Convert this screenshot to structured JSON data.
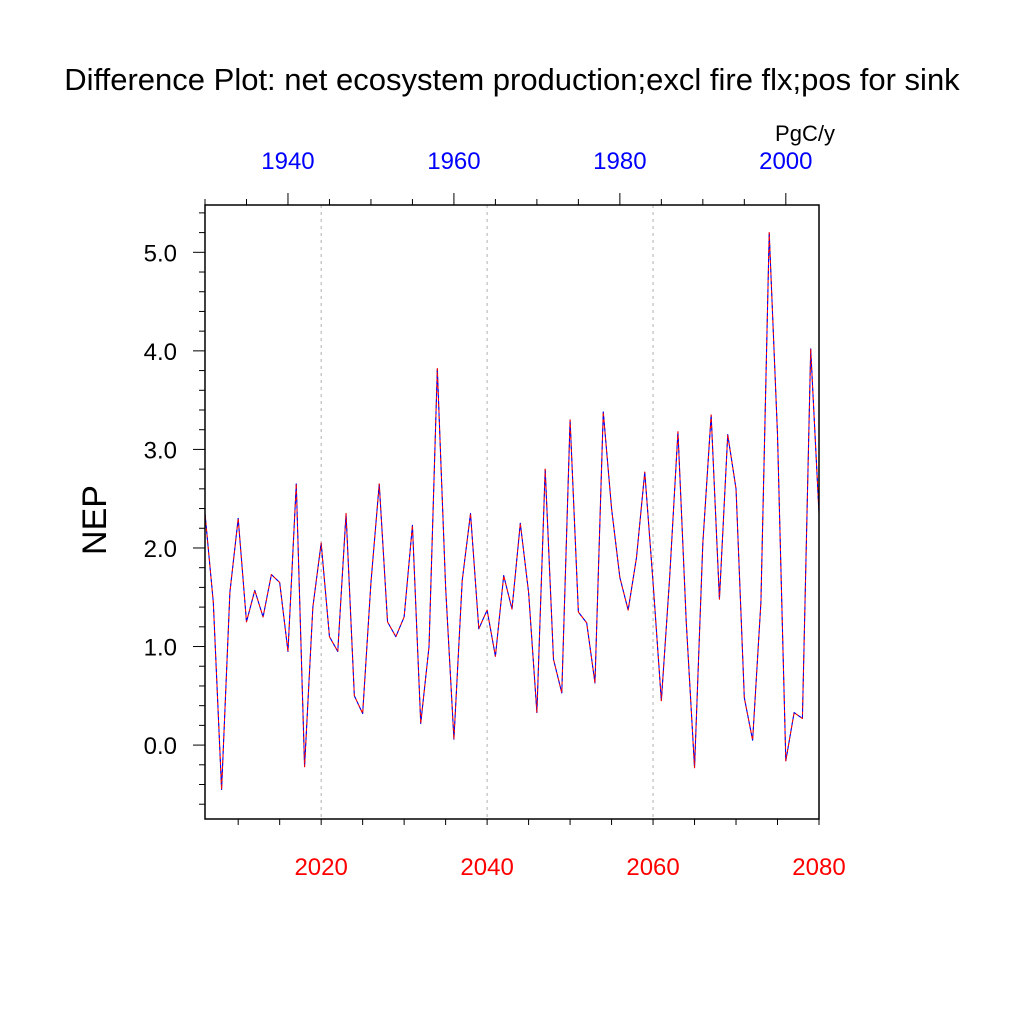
{
  "chart_data": {
    "type": "line",
    "title": "Difference Plot: net ecosystem production;excl fire flx;pos for sink",
    "units": "PgC/y",
    "ylabel": "NEP",
    "ylim": [
      -0.75,
      5.48
    ],
    "yticks": [
      0.0,
      1.0,
      2.0,
      3.0,
      4.0,
      5.0
    ],
    "ytick_labels": [
      "0.0",
      "1.0",
      "2.0",
      "3.0",
      "4.0",
      "5.0"
    ],
    "x_bottom": {
      "range": [
        2006,
        2080
      ],
      "ticks": [
        2020,
        2040,
        2060,
        2080
      ],
      "tick_labels": [
        "2020",
        "2040",
        "2060",
        "2080"
      ],
      "color": "#ff0000"
    },
    "x_top": {
      "range": [
        1930,
        2004
      ],
      "ticks": [
        1940,
        1960,
        1980,
        2000
      ],
      "tick_labels": [
        "1940",
        "1960",
        "1980",
        "2000"
      ],
      "color": "#0000ff"
    },
    "grid": "vertical dashed",
    "x": [
      2006,
      2007,
      2008,
      2009,
      2010,
      2011,
      2012,
      2013,
      2014,
      2015,
      2016,
      2017,
      2018,
      2019,
      2020,
      2021,
      2022,
      2023,
      2024,
      2025,
      2026,
      2027,
      2028,
      2029,
      2030,
      2031,
      2032,
      2033,
      2034,
      2035,
      2036,
      2037,
      2038,
      2039,
      2040,
      2041,
      2042,
      2043,
      2044,
      2045,
      2046,
      2047,
      2048,
      2049,
      2050,
      2051,
      2052,
      2053,
      2054,
      2055,
      2056,
      2057,
      2058,
      2059,
      2060,
      2061,
      2062,
      2063,
      2064,
      2065,
      2066,
      2067,
      2068,
      2069,
      2070,
      2071,
      2072,
      2073,
      2074,
      2075,
      2076,
      2077,
      2078,
      2079,
      2080
    ],
    "series": [
      {
        "values": [
          2.35,
          1.45,
          -0.45,
          1.55,
          2.3,
          1.25,
          1.57,
          1.3,
          1.73,
          1.65,
          0.95,
          2.65,
          -0.22,
          1.4,
          2.05,
          1.1,
          0.95,
          2.35,
          0.5,
          0.32,
          1.65,
          2.65,
          1.25,
          1.1,
          1.3,
          2.23,
          0.22,
          1.0,
          3.82,
          1.6,
          0.06,
          1.67,
          2.35,
          1.18,
          1.37,
          0.9,
          1.72,
          1.38,
          2.25,
          1.55,
          0.33,
          2.8,
          0.87,
          0.53,
          3.3,
          1.35,
          1.24,
          0.63,
          3.38,
          2.4,
          1.7,
          1.37,
          1.9,
          2.77,
          1.65,
          0.45,
          1.7,
          3.18,
          1.25,
          -0.23,
          2.05,
          3.35,
          1.48,
          3.15,
          2.6,
          0.48,
          0.05,
          1.45,
          5.2,
          3.15,
          -0.16,
          0.33,
          0.27,
          4.02,
          2.35
        ],
        "colors": [
          "#0000ff",
          "#ff0000",
          "#000000"
        ]
      }
    ]
  }
}
